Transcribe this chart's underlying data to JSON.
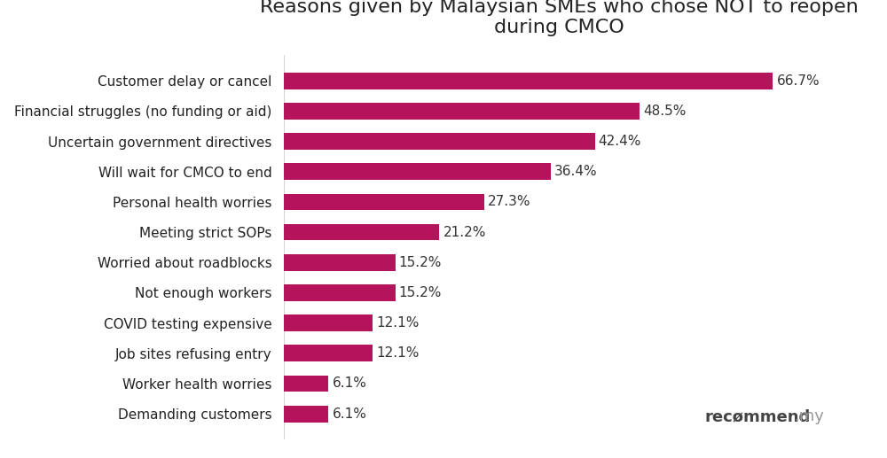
{
  "title": "Reasons given by Malaysian SMEs who chose NOT to reopen\nduring CMCO",
  "categories": [
    "Demanding customers",
    "Worker health worries",
    "Job sites refusing entry",
    "COVID testing expensive",
    "Not enough workers",
    "Worried about roadblocks",
    "Meeting strict SOPs",
    "Personal health worries",
    "Will wait for CMCO to end",
    "Uncertain government directives",
    "Financial struggles (no funding or aid)",
    "Customer delay or cancel"
  ],
  "values": [
    6.1,
    6.1,
    12.1,
    12.1,
    15.2,
    15.2,
    21.2,
    27.3,
    36.4,
    42.4,
    48.5,
    66.7
  ],
  "bar_color": "#b5135b",
  "background_color": "#ffffff",
  "title_fontsize": 16,
  "label_fontsize": 11,
  "value_fontsize": 11,
  "xlim": [
    0,
    75
  ],
  "separator_color": "#cccccc",
  "watermark_main": "recømmend",
  "watermark_suffix": ".my",
  "watermark_main_color": "#444444",
  "watermark_suffix_color": "#999999"
}
